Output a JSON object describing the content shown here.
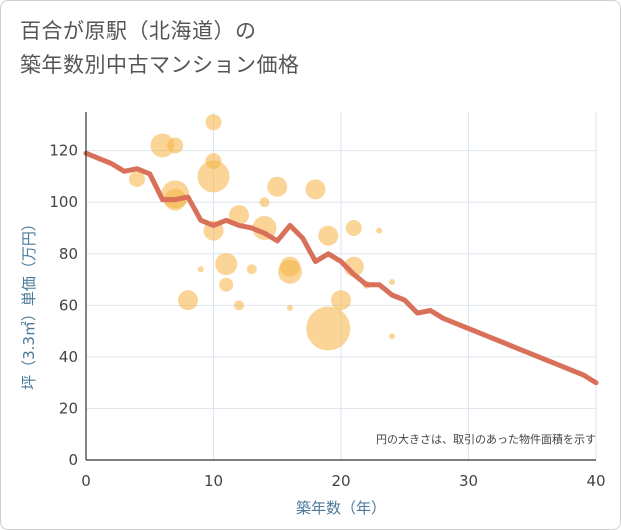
{
  "title_line1": "百合が原駅（北海道）の",
  "title_line2": "築年数別中古マンション価格",
  "chart_data": {
    "type": "scatter",
    "xlabel": "築年数（年）",
    "ylabel": "坪（3.3㎡）単価（万円）",
    "xlim": [
      0,
      40
    ],
    "ylim": [
      0,
      135
    ],
    "x_ticks": [
      "0",
      "10",
      "20",
      "30",
      "40"
    ],
    "y_ticks": [
      "0",
      "20",
      "40",
      "60",
      "80",
      "100",
      "120"
    ],
    "grid": true,
    "annotation": "円の大きさは、取引のあった物件面積を示す",
    "bubble_color": "#f5b342",
    "line_color": "#d9705a",
    "bubbles": [
      {
        "x": 6,
        "y": 122,
        "r": 12
      },
      {
        "x": 7,
        "y": 122,
        "r": 8
      },
      {
        "x": 10,
        "y": 131,
        "r": 8
      },
      {
        "x": 10,
        "y": 116,
        "r": 8
      },
      {
        "x": 10,
        "y": 110,
        "r": 16
      },
      {
        "x": 4,
        "y": 109,
        "r": 8
      },
      {
        "x": 7,
        "y": 103,
        "r": 14
      },
      {
        "x": 7,
        "y": 101,
        "r": 11
      },
      {
        "x": 15,
        "y": 106,
        "r": 10
      },
      {
        "x": 18,
        "y": 105,
        "r": 10
      },
      {
        "x": 14,
        "y": 100,
        "r": 5
      },
      {
        "x": 12,
        "y": 95,
        "r": 10
      },
      {
        "x": 14,
        "y": 90,
        "r": 12
      },
      {
        "x": 10,
        "y": 89,
        "r": 10
      },
      {
        "x": 21,
        "y": 90,
        "r": 8
      },
      {
        "x": 23,
        "y": 89,
        "r": 3
      },
      {
        "x": 19,
        "y": 87,
        "r": 10
      },
      {
        "x": 11,
        "y": 76,
        "r": 11
      },
      {
        "x": 16,
        "y": 75,
        "r": 10
      },
      {
        "x": 16,
        "y": 73,
        "r": 12
      },
      {
        "x": 21,
        "y": 75,
        "r": 10
      },
      {
        "x": 9,
        "y": 74,
        "r": 3
      },
      {
        "x": 13,
        "y": 74,
        "r": 5
      },
      {
        "x": 11,
        "y": 68,
        "r": 7
      },
      {
        "x": 24,
        "y": 69,
        "r": 3
      },
      {
        "x": 22,
        "y": 68,
        "r": 4
      },
      {
        "x": 8,
        "y": 62,
        "r": 10
      },
      {
        "x": 12,
        "y": 60,
        "r": 5
      },
      {
        "x": 20,
        "y": 62,
        "r": 10
      },
      {
        "x": 16,
        "y": 59,
        "r": 3
      },
      {
        "x": 19,
        "y": 51,
        "r": 22
      },
      {
        "x": 24,
        "y": 48,
        "r": 3
      }
    ],
    "trend": {
      "x": [
        0,
        1,
        2,
        3,
        4,
        5,
        6,
        7,
        8,
        9,
        10,
        11,
        12,
        13,
        14,
        15,
        16,
        17,
        18,
        19,
        20,
        21,
        22,
        23,
        24,
        25,
        26,
        27,
        28,
        29,
        30,
        31,
        32,
        33,
        34,
        35,
        36,
        37,
        38,
        39,
        40
      ],
      "y": [
        119,
        117,
        115,
        112,
        113,
        111,
        101,
        101,
        102,
        93,
        91,
        93,
        91,
        90,
        88,
        85,
        91,
        86,
        77,
        80,
        77,
        72,
        68,
        68,
        64,
        62,
        57,
        58,
        55,
        53,
        51,
        49,
        47,
        45,
        43,
        41,
        39,
        37,
        35,
        33,
        30
      ]
    }
  }
}
